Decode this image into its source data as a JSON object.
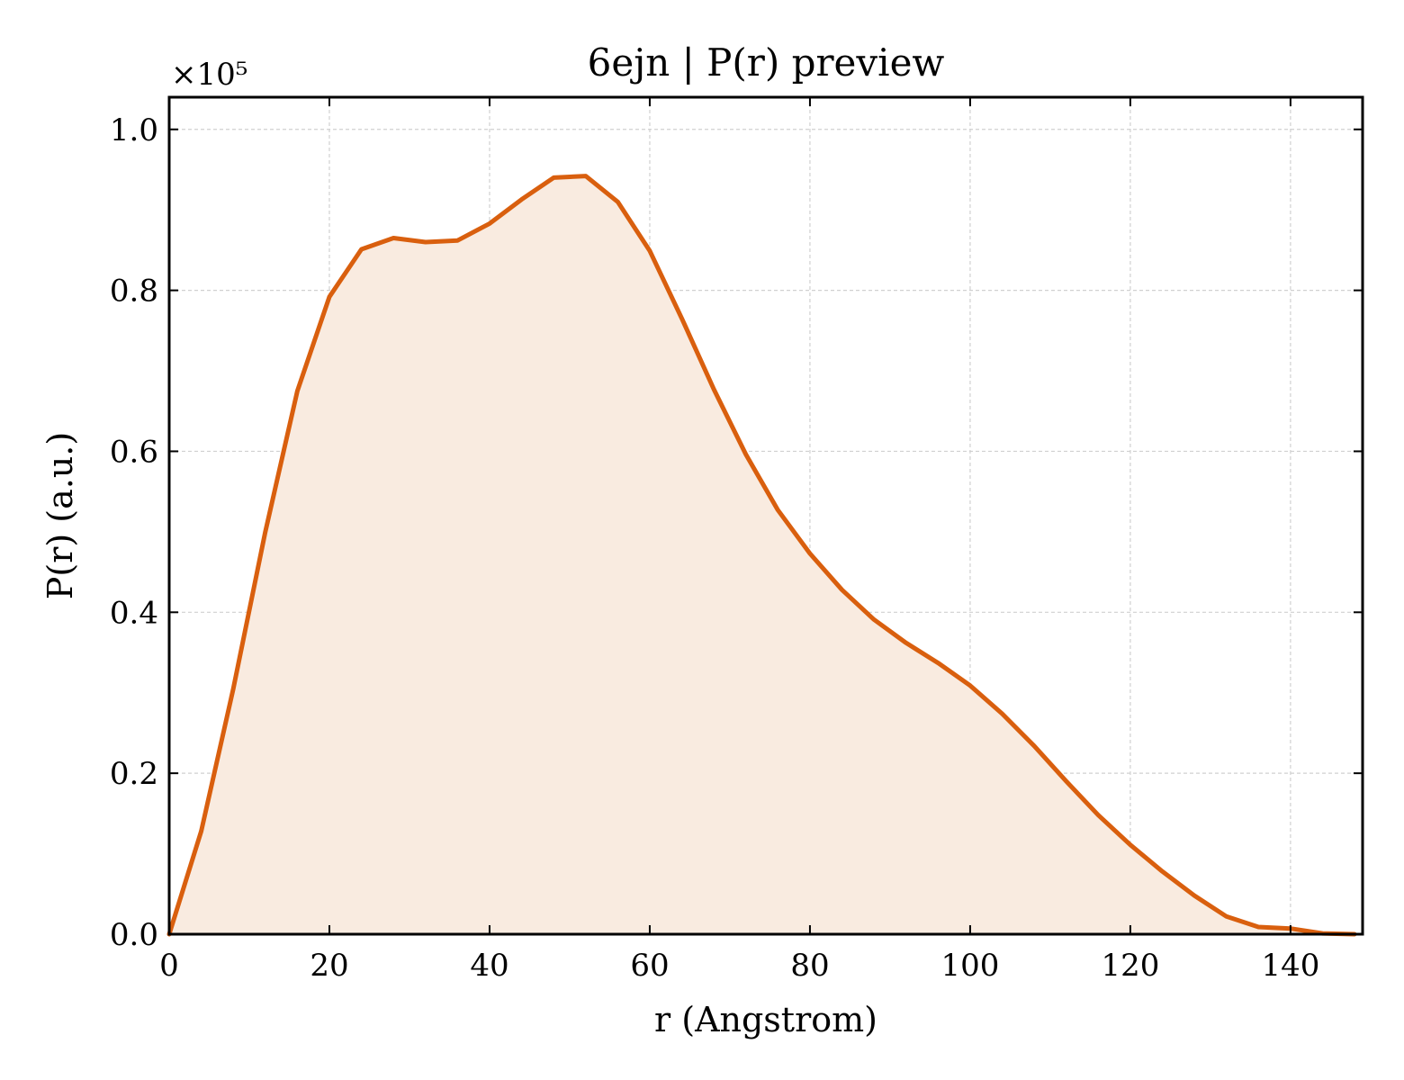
{
  "chart_data": {
    "type": "area",
    "title": "6ejn | P(r) preview",
    "xlabel": "r (Angstrom)",
    "ylabel": "P(r) (a.u.)",
    "y_scale_label": "×10⁵",
    "y_multiplier": 100000,
    "xlim": [
      0,
      149
    ],
    "ylim": [
      0,
      1.04
    ],
    "xticks": [
      0,
      20,
      40,
      60,
      80,
      100,
      120,
      140
    ],
    "xtick_labels": [
      "0",
      "20",
      "40",
      "60",
      "80",
      "100",
      "120",
      "140"
    ],
    "yticks": [
      0.0,
      0.2,
      0.4,
      0.6,
      0.8,
      1.0
    ],
    "ytick_labels": [
      "0.0",
      "0.2",
      "0.4",
      "0.6",
      "0.8",
      "1.0"
    ],
    "grid": true,
    "line_color": "#d95f0e",
    "fill_color": "#f9ebe0",
    "series": [
      {
        "x": [
          0,
          4,
          8,
          12,
          16,
          20,
          24,
          28,
          32,
          36,
          40,
          44,
          48,
          52,
          56,
          60,
          64,
          68,
          72,
          76,
          80,
          84,
          88,
          92,
          96,
          100,
          104,
          108,
          112,
          116,
          120,
          124,
          128,
          132,
          136,
          140,
          144,
          148
        ],
        "y": [
          0.0,
          0.128,
          0.305,
          0.5,
          0.675,
          0.792,
          0.851,
          0.865,
          0.86,
          0.862,
          0.883,
          0.913,
          0.94,
          0.942,
          0.91,
          0.849,
          0.765,
          0.677,
          0.596,
          0.527,
          0.473,
          0.428,
          0.391,
          0.362,
          0.337,
          0.309,
          0.274,
          0.234,
          0.19,
          0.148,
          0.111,
          0.078,
          0.048,
          0.022,
          0.009,
          0.007,
          0.001,
          0.0
        ]
      }
    ]
  }
}
